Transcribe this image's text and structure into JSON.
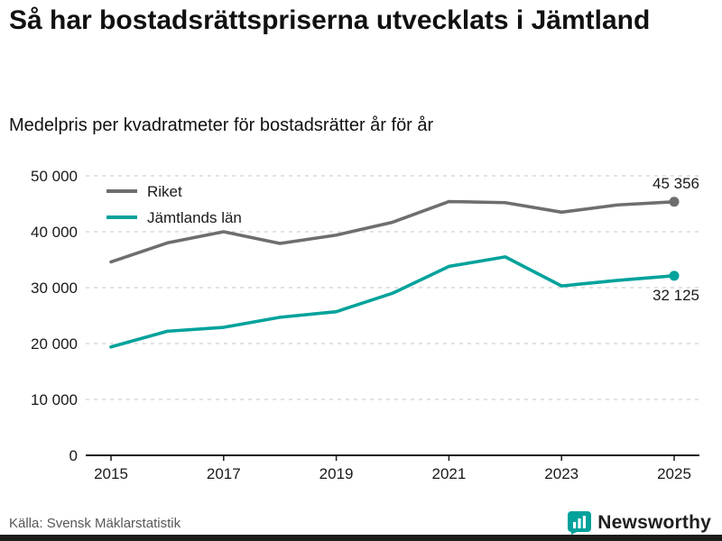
{
  "header": {
    "title": "Så har bostadsrättspriserna utvecklats i Jämtland",
    "subtitle": "Medelpris per kvadratmeter för bostadsrätter år för år"
  },
  "chart_data": {
    "type": "line",
    "x": [
      2015,
      2016,
      2017,
      2018,
      2019,
      2020,
      2021,
      2022,
      2023,
      2024,
      2025
    ],
    "series": [
      {
        "name": "Riket",
        "color": "#6e6e6e",
        "values": [
          34600,
          38000,
          40000,
          37900,
          39400,
          41700,
          45400,
          45200,
          43500,
          44800,
          45356
        ],
        "end_label": "45 356",
        "end_label_pos": "above"
      },
      {
        "name": "Jämtlands län",
        "color": "#00a29b",
        "values": [
          19400,
          22200,
          22900,
          24700,
          25700,
          29000,
          33800,
          35500,
          30300,
          31300,
          32125
        ],
        "end_label": "32 125",
        "end_label_pos": "below"
      }
    ],
    "ylim": [
      0,
      50000
    ],
    "yticks": [
      0,
      10000,
      20000,
      30000,
      40000,
      50000
    ],
    "ytick_labels": [
      "0",
      "10 000",
      "20 000",
      "30 000",
      "40 000",
      "50 000"
    ],
    "xticks": [
      2015,
      2017,
      2019,
      2021,
      2023,
      2025
    ],
    "grid": "dashed-horizontal",
    "legend_position": "top-left"
  },
  "footer": {
    "source": "Källa: Svensk Mäklarstatistik",
    "brand": "Newsworthy"
  },
  "colors": {
    "grid": "#c4c4c4",
    "axis": "#1a1a1a",
    "tick_text": "#1a1a1a",
    "brand_teal": "#00a29b",
    "footer_bar": "#1d1d1b"
  }
}
